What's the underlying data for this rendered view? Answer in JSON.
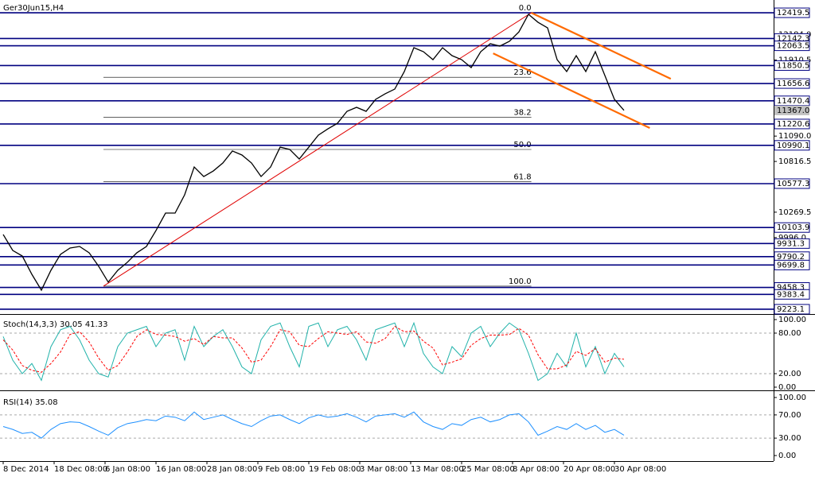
{
  "chart_data": [
    {
      "type": "line",
      "title": "Ger30Jun15,H4",
      "xlabels": [
        "8 Dec 2014",
        "18 Dec 08:00",
        "6 Jan 08:00",
        "16 Jan 08:00",
        "28 Jan 08:00",
        "9 Feb 08:00",
        "19 Feb 08:00",
        "3 Mar 08:00",
        "13 Mar 08:00",
        "25 Mar 08:00",
        "8 Apr 08:00",
        "20 Apr 08:00",
        "30 Apr 08:00"
      ],
      "series": [
        {
          "color": "#000000",
          "values": [
            10029,
            9857,
            9797,
            9600,
            9429,
            9643,
            9815,
            9883,
            9900,
            9832,
            9686,
            9515,
            9643,
            9729,
            9832,
            9900,
            10072,
            10260,
            10260,
            10457,
            10757,
            10654,
            10714,
            10800,
            10929,
            10886,
            10800,
            10654,
            10757,
            10971,
            10946,
            10843,
            10971,
            11100,
            11168,
            11228,
            11357,
            11400,
            11357,
            11486,
            11546,
            11597,
            11786,
            12043,
            12000,
            11914,
            12043,
            11957,
            11914,
            11829,
            12000,
            12086,
            12060,
            12112,
            12214,
            12403,
            12317,
            12257,
            11914,
            11786,
            11957,
            11786,
            12000,
            11743,
            11486,
            11367
          ]
        }
      ],
      "ylim": [
        9180,
        12523
      ],
      "yticks": [
        {
          "value": 12184,
          "label": "12184.0"
        },
        {
          "value": 11910.5,
          "label": "11910.5"
        },
        {
          "value": 11090,
          "label": "11090.0"
        },
        {
          "value": 10816.5,
          "label": "10816.5"
        },
        {
          "value": 10269.5,
          "label": "10269.5"
        },
        {
          "value": 9996,
          "label": "9996.0"
        }
      ],
      "levels": [
        12419.5,
        12142.3,
        12063.5,
        11850.5,
        11656.6,
        11470.4,
        11220.6,
        10990.1,
        10577.3,
        10103.9,
        9931.3,
        9790.2,
        9699.8,
        9458.3,
        9383.4,
        9223.1
      ],
      "level_color": "#000080",
      "current_price": {
        "value": 11367,
        "label": "11367.0"
      },
      "fib": {
        "high": 12419.5,
        "low": 9472,
        "from": 10.5,
        "to": 55.3,
        "color": "#000000",
        "levels": [
          {
            "value": 0,
            "label": "0.0"
          },
          23.6,
          38.2,
          {
            "value": 50,
            "label": "50.0"
          },
          61.8,
          {
            "value": 100,
            "label": "100.0"
          }
        ]
      },
      "trendlines": [
        {
          "color": "#e00000",
          "x": [
            10.5,
            55.3
          ],
          "y": [
            9472,
            12419.5
          ]
        },
        {
          "color": "#ff6a00",
          "x": [
            55.3,
            69.9
          ],
          "y": [
            12419.5,
            11708
          ]
        },
        {
          "color": "#ff6a00",
          "x": [
            51.3,
            67.7
          ],
          "y": [
            11982,
            11177
          ]
        }
      ]
    },
    {
      "type": "line",
      "title": "Stoch(14,3,3) 30.05 41.33",
      "series": [
        {
          "color": "#20b2aa",
          "values": [
            75,
            40,
            20,
            35,
            10,
            60,
            85,
            90,
            70,
            40,
            20,
            15,
            60,
            80,
            85,
            90,
            60,
            80,
            85,
            40,
            90,
            60,
            75,
            85,
            60,
            30,
            20,
            70,
            90,
            95,
            60,
            30,
            90,
            95,
            60,
            85,
            90,
            70,
            40,
            85,
            90,
            95,
            60,
            95,
            50,
            30,
            20,
            60,
            45,
            80,
            90,
            60,
            80,
            95,
            85,
            50,
            10,
            20,
            50,
            30,
            80,
            30,
            60,
            20,
            50,
            30.05
          ]
        },
        {
          "color": "#ff0000",
          "dashed": true,
          "values": [
            70,
            55,
            32,
            25,
            22,
            35,
            52,
            78,
            82,
            67,
            43,
            25,
            32,
            52,
            75,
            85,
            78,
            77,
            75,
            68,
            72,
            63,
            75,
            73,
            73,
            58,
            37,
            40,
            60,
            85,
            82,
            62,
            60,
            72,
            82,
            80,
            78,
            82,
            67,
            65,
            72,
            90,
            82,
            83,
            68,
            58,
            33,
            37,
            42,
            62,
            72,
            77,
            77,
            78,
            87,
            77,
            48,
            27,
            27,
            33,
            53,
            47,
            57,
            37,
            43,
            41.33
          ]
        }
      ],
      "ylim": [
        0,
        100
      ],
      "yticks": [
        {
          "value": 100,
          "label": "100.00"
        },
        {
          "value": 80,
          "label": "80.00"
        },
        {
          "value": 20,
          "label": "20.00"
        },
        {
          "value": 0,
          "label": "0.00"
        }
      ]
    },
    {
      "type": "line",
      "title": "RSI(14) 35.08",
      "series": [
        {
          "color": "#1e90ff",
          "values": [
            50,
            45,
            38,
            40,
            30,
            45,
            55,
            58,
            57,
            50,
            42,
            35,
            48,
            55,
            58,
            62,
            60,
            68,
            66,
            60,
            75,
            62,
            66,
            70,
            62,
            55,
            50,
            60,
            68,
            70,
            62,
            55,
            65,
            70,
            66,
            68,
            72,
            66,
            58,
            68,
            70,
            72,
            66,
            75,
            58,
            50,
            45,
            55,
            52,
            62,
            66,
            58,
            62,
            70,
            72,
            58,
            35,
            42,
            50,
            45,
            55,
            45,
            52,
            40,
            45,
            35.08
          ]
        }
      ],
      "ylim": [
        0,
        100
      ],
      "yticks": [
        {
          "value": 100,
          "label": "100.00"
        },
        {
          "value": 70,
          "label": "70.00"
        },
        {
          "value": 30,
          "label": "30.00"
        },
        {
          "value": 0,
          "label": "0.00"
        }
      ]
    }
  ]
}
